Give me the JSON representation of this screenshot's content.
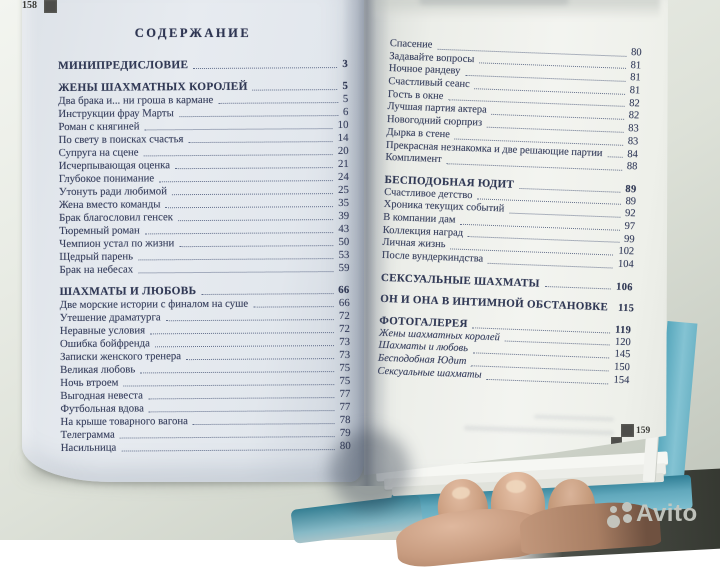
{
  "photo": {
    "subject": "Открытая книга — оглавление (разворот страниц 158–159)"
  },
  "left_page": {
    "header": "СОДЕРЖАНИЕ",
    "page_number": "158",
    "blocks": [
      {
        "title": "МИНИПРЕДИСЛОВИЕ",
        "page": "3",
        "items": []
      },
      {
        "title": "ЖЕНЫ ШАХМАТНЫХ КОРОЛЕЙ",
        "page": "5",
        "items": [
          {
            "t": "Два брака и... ни гроша в кармане",
            "p": "5"
          },
          {
            "t": "Инструкции фрау Марты",
            "p": "6"
          },
          {
            "t": "Роман с княгиней",
            "p": "10"
          },
          {
            "t": "По свету в поисках счастья",
            "p": "14"
          },
          {
            "t": "Супруга на сцене",
            "p": "20"
          },
          {
            "t": "Исчерпывающая оценка",
            "p": "21"
          },
          {
            "t": "Глубокое понимание",
            "p": "24"
          },
          {
            "t": "Утонуть ради любимой",
            "p": "25"
          },
          {
            "t": "Жена вместо команды",
            "p": "35"
          },
          {
            "t": "Брак благословил генсек",
            "p": "39"
          },
          {
            "t": "Тюремный роман",
            "p": "43"
          },
          {
            "t": "Чемпион устал по жизни",
            "p": "50"
          },
          {
            "t": "Щедрый парень",
            "p": "53"
          },
          {
            "t": "Брак на небесах",
            "p": "59"
          }
        ]
      },
      {
        "title": "ШАХМАТЫ И ЛЮБОВЬ",
        "page": "66",
        "items": [
          {
            "t": "Две морские истории с финалом на суше",
            "p": "66"
          },
          {
            "t": "Утешение драматурга",
            "p": "72"
          },
          {
            "t": "Неравные условия",
            "p": "72"
          },
          {
            "t": "Ошибка бойфренда",
            "p": "73"
          },
          {
            "t": "Записки женского тренера",
            "p": "73"
          },
          {
            "t": "Великая любовь",
            "p": "75"
          },
          {
            "t": "Ночь втроем",
            "p": "75"
          },
          {
            "t": "Выгодная невеста",
            "p": "77"
          },
          {
            "t": "Футбольная вдова",
            "p": "77"
          },
          {
            "t": "На крыше товарного вагона",
            "p": "78"
          },
          {
            "t": "Телеграмма",
            "p": "79"
          },
          {
            "t": "Насильница",
            "p": "80"
          }
        ]
      }
    ]
  },
  "right_page": {
    "page_number": "159",
    "blocks": [
      {
        "title": null,
        "items": [
          {
            "t": "Спасение",
            "p": "80"
          },
          {
            "t": "Задавайте вопросы",
            "p": "81"
          },
          {
            "t": "Ночное рандеву",
            "p": "81"
          },
          {
            "t": "Счастливый сеанс",
            "p": "81"
          },
          {
            "t": "Гость в окне",
            "p": "82"
          },
          {
            "t": "Лучшая партия актера",
            "p": "82"
          },
          {
            "t": "Новогодний сюрприз",
            "p": "83"
          },
          {
            "t": "Дырка в стене",
            "p": "83"
          },
          {
            "t": "Прекрасная незнакомка и две решающие партии",
            "p": "84"
          },
          {
            "t": "Комплимент",
            "p": "88"
          }
        ]
      },
      {
        "title": "БЕСПОДОБНАЯ ЮДИТ",
        "page": "89",
        "items": [
          {
            "t": "Счастливое детство",
            "p": "89"
          },
          {
            "t": "Хроника текущих событий",
            "p": "92"
          },
          {
            "t": "В компании дам",
            "p": "97"
          },
          {
            "t": "Коллекция наград",
            "p": "99"
          },
          {
            "t": "Личная жизнь",
            "p": "102"
          },
          {
            "t": "После вундеркиндства",
            "p": "104"
          }
        ]
      },
      {
        "title": "СЕКСУАЛЬНЫЕ ШАХМАТЫ",
        "page": "106",
        "items": []
      },
      {
        "title": "ОН И ОНА В ИНТИМНОЙ ОБСТАНОВКЕ",
        "page": "115",
        "items": []
      },
      {
        "title": "ФОТОГАЛЕРЕЯ",
        "page": "119",
        "italic_items": true,
        "items": [
          {
            "t": "Жены шахматных королей",
            "p": "120"
          },
          {
            "t": "Шахматы и любовь",
            "p": "145"
          },
          {
            "t": "Бесподобная Юдит",
            "p": "150"
          },
          {
            "t": "Сексуальные шахматы",
            "p": "154"
          }
        ]
      }
    ]
  },
  "watermark": {
    "brand": "Avito"
  },
  "colors": {
    "ink": "#39415f",
    "left_page": "#e4e8ee",
    "right_page": "#f2f3ef",
    "cover_teal": "#79bdd0",
    "desk": "#dfe2da",
    "dark_corner": "#3e413a",
    "watermark_gray": "#c6c9c2"
  }
}
